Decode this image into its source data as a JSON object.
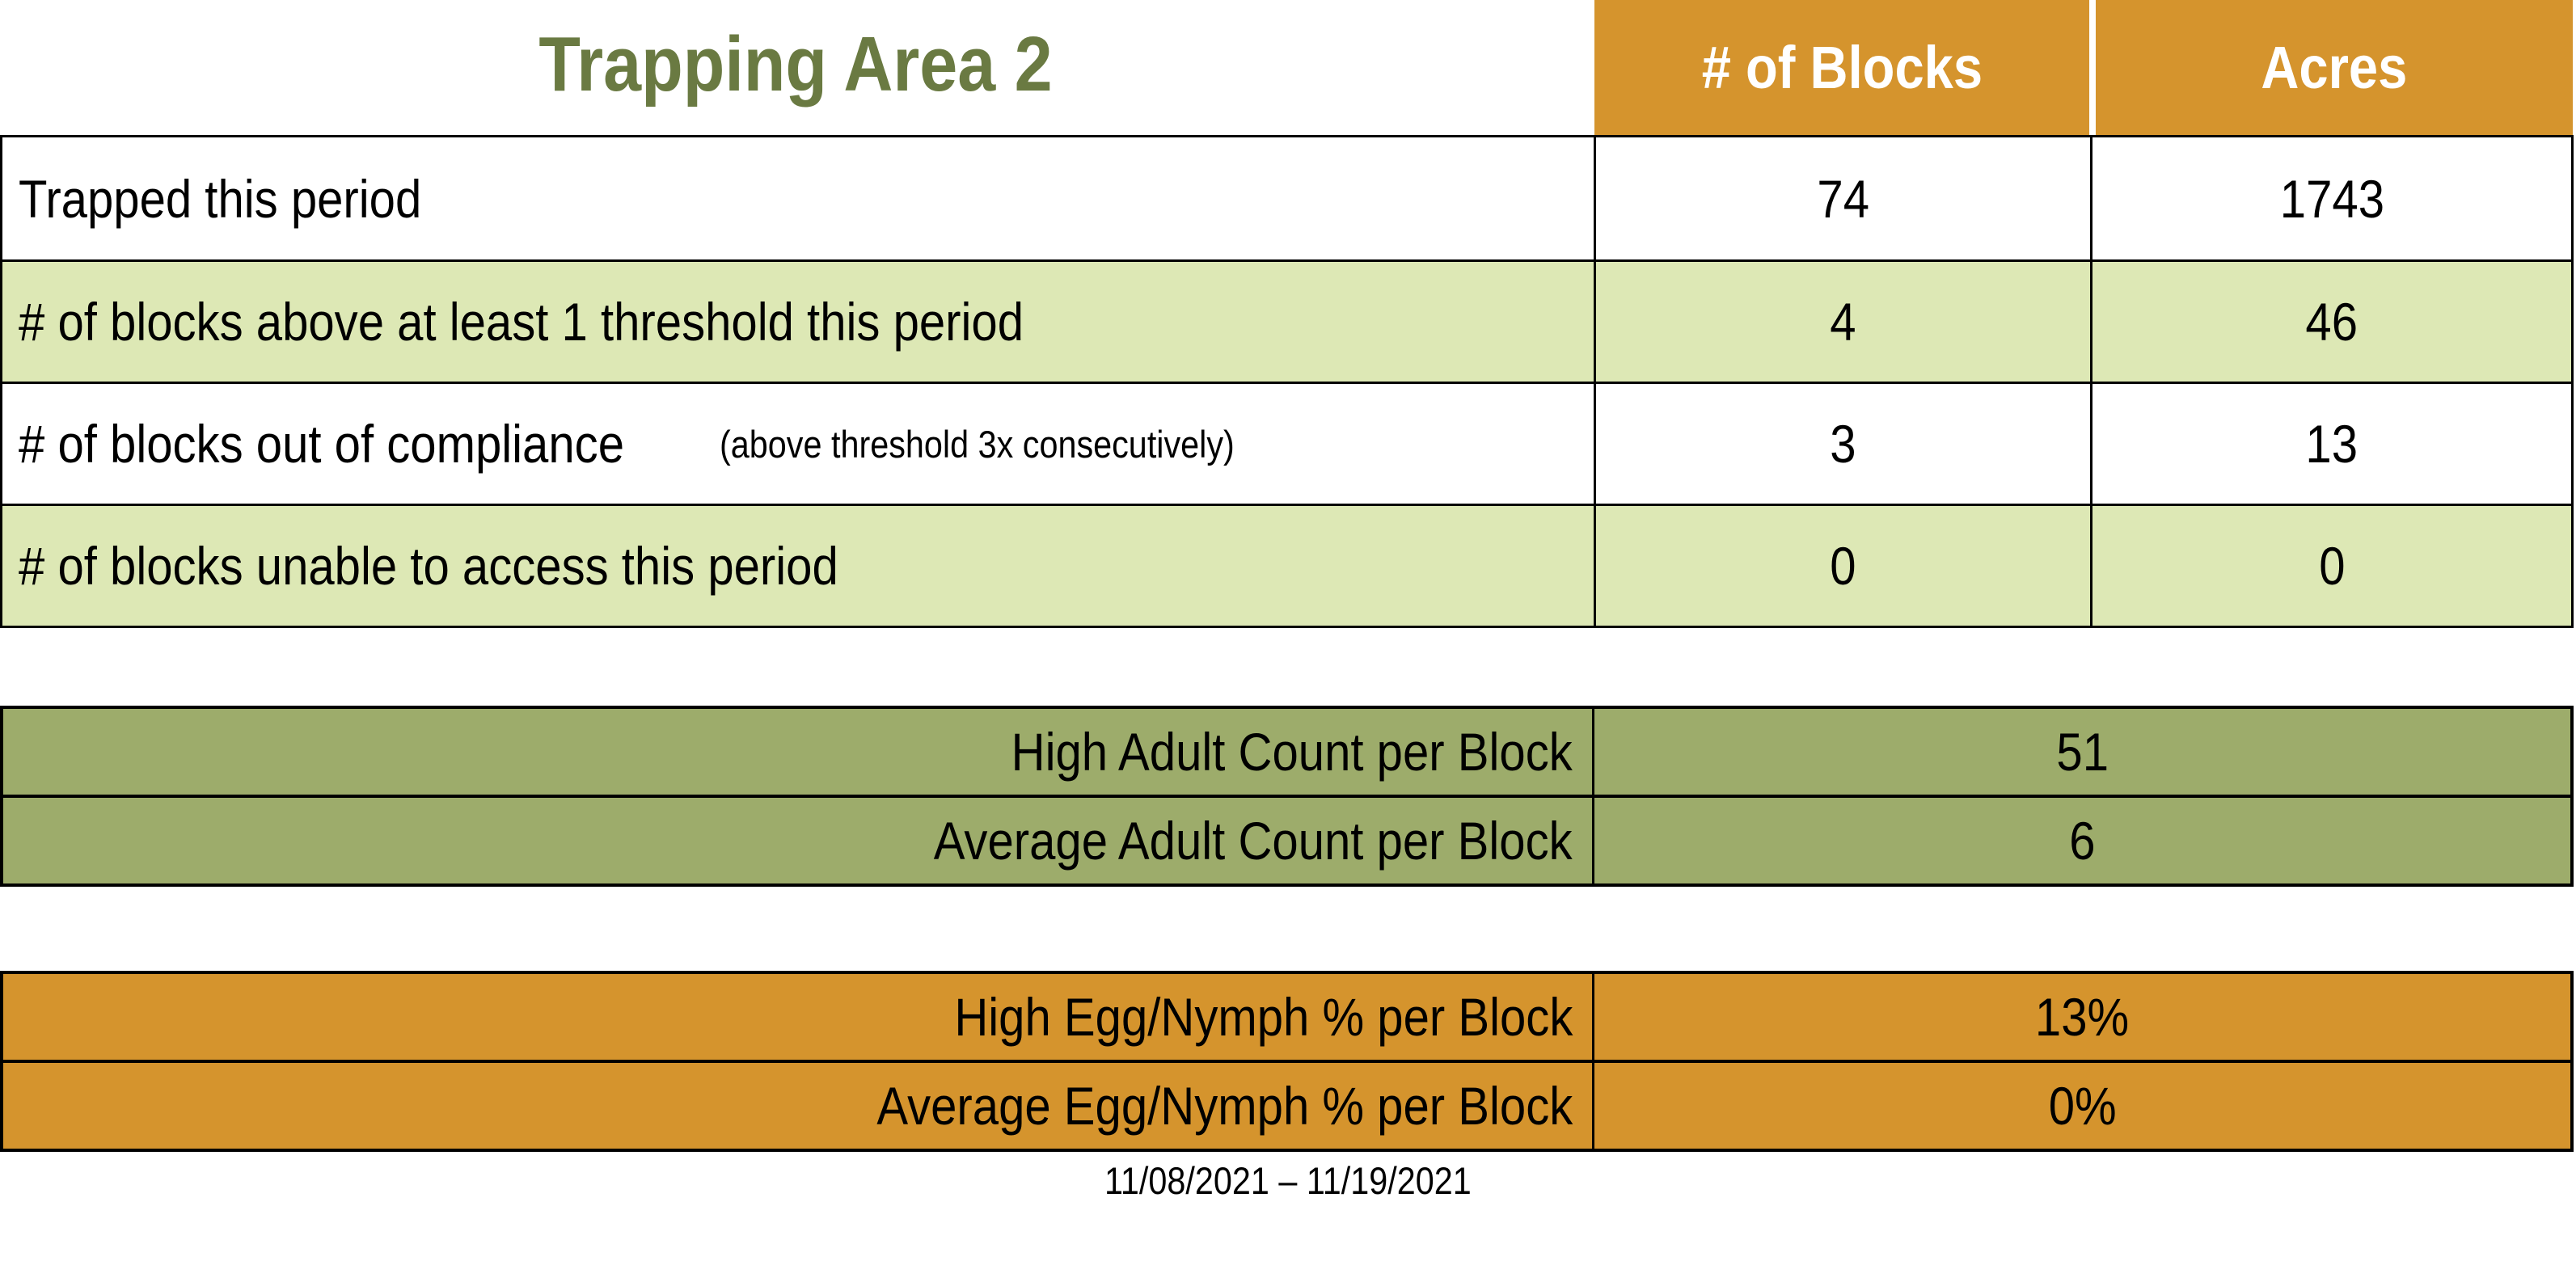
{
  "title": "Trapping Area 2",
  "date_range": "11/08/2021 – 11/19/2021",
  "colors": {
    "header_orange": "#D5942D",
    "row_light_green": "#DDE8B5",
    "olive_green": "#9DAC6B",
    "title_green": "#6A7A42",
    "header_text": "#FFFFFF",
    "border": "#000000"
  },
  "main_table": {
    "columns": [
      "# of Blocks",
      "Acres"
    ],
    "rows": [
      {
        "label": "Trapped this period",
        "note": "",
        "blocks": "74",
        "acres": "1743"
      },
      {
        "label": "# of blocks above at least 1 threshold this period",
        "note": "",
        "blocks": "4",
        "acres": "46"
      },
      {
        "label": "# of blocks out of compliance",
        "note": "(above threshold 3x consecutively)",
        "blocks": "3",
        "acres": "13"
      },
      {
        "label": "# of blocks unable to access this period",
        "note": "",
        "blocks": "0",
        "acres": "0"
      }
    ]
  },
  "adult_table": {
    "rows": [
      {
        "label": "High Adult Count per Block",
        "value": "51"
      },
      {
        "label": "Average Adult Count per Block",
        "value": "6"
      }
    ]
  },
  "egg_table": {
    "rows": [
      {
        "label": "High Egg/Nymph % per Block",
        "value": "13%"
      },
      {
        "label": "Average Egg/Nymph % per Block",
        "value": "0%"
      }
    ]
  }
}
